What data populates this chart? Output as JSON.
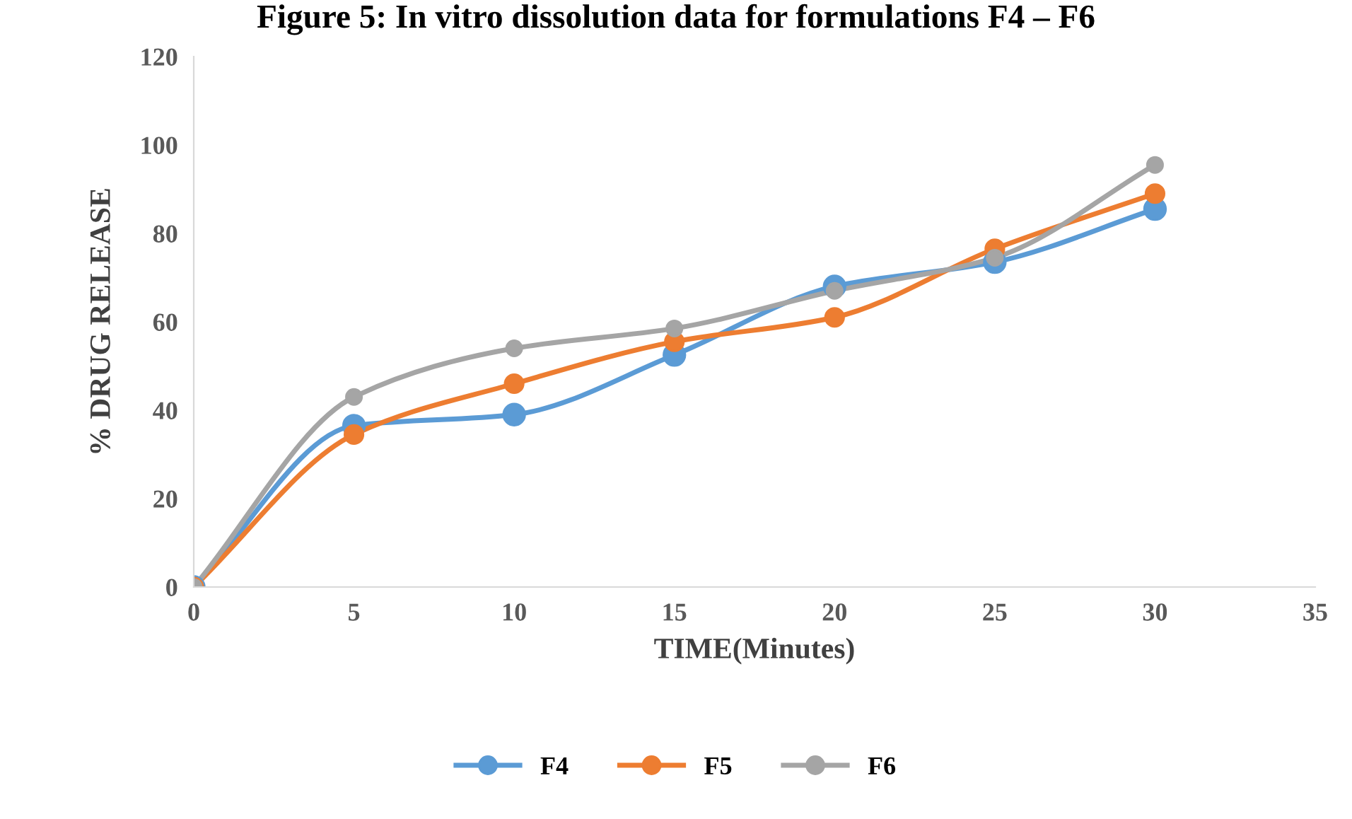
{
  "chart_data": {
    "type": "line",
    "title": "Figure 5: In vitro dissolution data for formulations F4 – F6",
    "xlabel": "TIME(Minutes)",
    "ylabel": "% DRUG RELEASE",
    "x": [
      0,
      5,
      10,
      15,
      20,
      25,
      30
    ],
    "series": [
      {
        "name": "F4",
        "color": "#5b9bd5",
        "values": [
          0,
          36.5,
          39,
          52.5,
          68,
          73.5,
          85.5
        ]
      },
      {
        "name": "F5",
        "color": "#ed7d31",
        "values": [
          0,
          34.5,
          46,
          55.5,
          61,
          76.5,
          89
        ]
      },
      {
        "name": "F6",
        "color": "#a5a5a5",
        "values": [
          0,
          43,
          54,
          58.5,
          67,
          74.5,
          95.5
        ]
      }
    ],
    "xlim": [
      0,
      35
    ],
    "xticks": [
      0,
      5,
      10,
      15,
      20,
      25,
      30,
      35
    ],
    "ylim": [
      0,
      120
    ],
    "yticks": [
      0,
      20,
      40,
      60,
      80,
      100,
      120
    ],
    "grid": false,
    "legend": "bottom",
    "marker": "circle",
    "line_style": "solid"
  }
}
